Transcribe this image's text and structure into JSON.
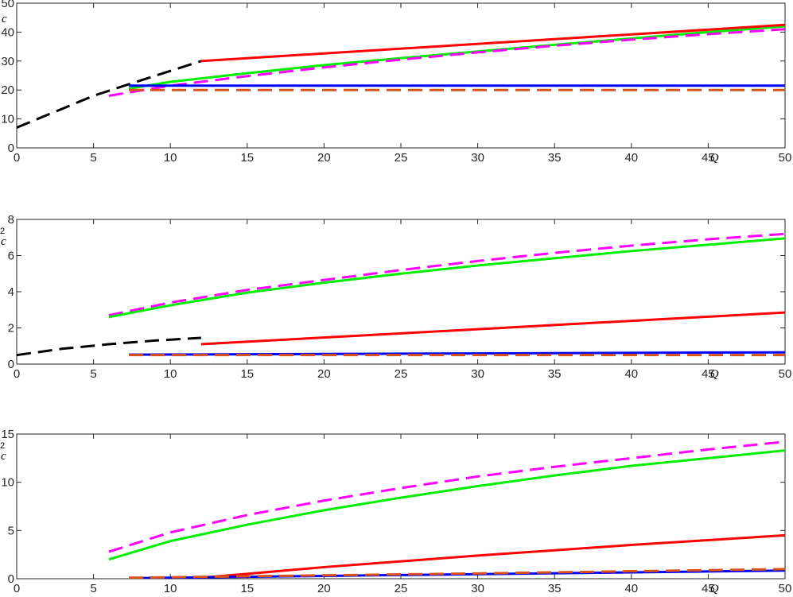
{
  "chart_data": [
    {
      "type": "line",
      "xlim": [
        0,
        50
      ],
      "ylim": [
        0,
        50
      ],
      "xticks": [
        0,
        5,
        10,
        15,
        20,
        25,
        30,
        35,
        40,
        45,
        50
      ],
      "yticks": [
        0,
        10,
        20,
        30,
        40,
        50
      ],
      "xlabel": "Q",
      "ylabel": "c",
      "grid": false,
      "box": true,
      "series": [
        {
          "color": "#000000",
          "dash": "dashed",
          "x": [
            0,
            5,
            7.3,
            12
          ],
          "y": [
            7,
            18,
            22,
            30
          ]
        },
        {
          "color": "#00ee00",
          "dash": "solid",
          "x": [
            7.3,
            10,
            15,
            20,
            25,
            30,
            35,
            40,
            45,
            50
          ],
          "y": [
            20.5,
            22.8,
            25.8,
            28.6,
            31,
            33.3,
            35.6,
            37.8,
            40,
            42
          ]
        },
        {
          "color": "#ff00ff",
          "dash": "dashed",
          "x": [
            6,
            10,
            15,
            20,
            25,
            30,
            35,
            40,
            45,
            50
          ],
          "y": [
            18,
            21.5,
            24.8,
            27.8,
            30.5,
            33,
            35.3,
            37.4,
            39.3,
            41
          ]
        },
        {
          "color": "#ff0000",
          "dash": "solid",
          "x": [
            12,
            50
          ],
          "y": [
            30,
            42.5
          ]
        },
        {
          "color": "#0000ff",
          "dash": "solid",
          "x": [
            7.3,
            50
          ],
          "y": [
            21.5,
            21.5
          ]
        },
        {
          "color": "#d95319",
          "dash": "dashed",
          "x": [
            7.3,
            50
          ],
          "y": [
            20,
            20
          ]
        }
      ]
    },
    {
      "type": "line",
      "xlim": [
        0,
        50
      ],
      "ylim": [
        0,
        8
      ],
      "xticks": [
        0,
        5,
        10,
        15,
        20,
        25,
        30,
        35,
        40,
        45,
        50
      ],
      "yticks": [
        0,
        2,
        4,
        6,
        8
      ],
      "xlabel": "Q",
      "ylabel_base": "c",
      "ylabel_sup": "2",
      "grid": false,
      "box": true,
      "series": [
        {
          "color": "#000000",
          "dash": "dashed",
          "x": [
            0,
            3,
            6,
            9,
            12
          ],
          "y": [
            0.5,
            0.85,
            1.1,
            1.3,
            1.45
          ]
        },
        {
          "color": "#ff00ff",
          "dash": "dashed",
          "x": [
            6,
            10,
            15,
            20,
            25,
            30,
            35,
            40,
            45,
            50
          ],
          "y": [
            2.7,
            3.4,
            4.1,
            4.65,
            5.2,
            5.7,
            6.15,
            6.55,
            6.9,
            7.2
          ]
        },
        {
          "color": "#00ee00",
          "dash": "solid",
          "x": [
            6,
            10,
            15,
            20,
            25,
            30,
            35,
            40,
            45,
            50
          ],
          "y": [
            2.6,
            3.25,
            3.95,
            4.5,
            5.0,
            5.45,
            5.85,
            6.25,
            6.6,
            6.95
          ]
        },
        {
          "color": "#ff0000",
          "dash": "solid",
          "x": [
            12,
            50
          ],
          "y": [
            1.1,
            2.85
          ]
        },
        {
          "color": "#0000ff",
          "dash": "solid",
          "x": [
            7.3,
            50
          ],
          "y": [
            0.52,
            0.65
          ]
        },
        {
          "color": "#d95319",
          "dash": "dashed",
          "x": [
            7.3,
            50
          ],
          "y": [
            0.5,
            0.5
          ]
        }
      ]
    },
    {
      "type": "line",
      "xlim": [
        0,
        50
      ],
      "ylim": [
        0,
        15
      ],
      "xticks": [
        0,
        5,
        10,
        15,
        20,
        25,
        30,
        35,
        40,
        45,
        50
      ],
      "yticks": [
        0,
        5,
        10,
        15
      ],
      "xlabel": "Q",
      "ylabel_base": "c",
      "ylabel_sup": "2",
      "grid": false,
      "box": true,
      "series": [
        {
          "color": "#ff00ff",
          "dash": "dashed",
          "x": [
            6,
            10,
            15,
            20,
            25,
            30,
            35,
            40,
            45,
            50
          ],
          "y": [
            2.8,
            4.8,
            6.6,
            8.1,
            9.4,
            10.6,
            11.6,
            12.5,
            13.4,
            14.2
          ]
        },
        {
          "color": "#00ee00",
          "dash": "solid",
          "x": [
            6,
            10,
            15,
            20,
            25,
            30,
            35,
            40,
            45,
            50
          ],
          "y": [
            2.0,
            3.9,
            5.6,
            7.1,
            8.4,
            9.6,
            10.7,
            11.7,
            12.5,
            13.3
          ]
        },
        {
          "color": "#ff0000",
          "dash": "solid",
          "x": [
            12,
            15,
            20,
            25,
            30,
            35,
            40,
            45,
            50
          ],
          "y": [
            0.1,
            0.5,
            1.2,
            1.8,
            2.4,
            2.95,
            3.5,
            4.0,
            4.5
          ]
        },
        {
          "color": "#0000ff",
          "dash": "solid",
          "x": [
            7.3,
            50
          ],
          "y": [
            0.05,
            0.85
          ]
        },
        {
          "color": "#d95319",
          "dash": "dashed",
          "x": [
            7.3,
            20,
            30,
            40,
            50
          ],
          "y": [
            0.1,
            0.35,
            0.55,
            0.78,
            1.0
          ]
        }
      ]
    }
  ]
}
